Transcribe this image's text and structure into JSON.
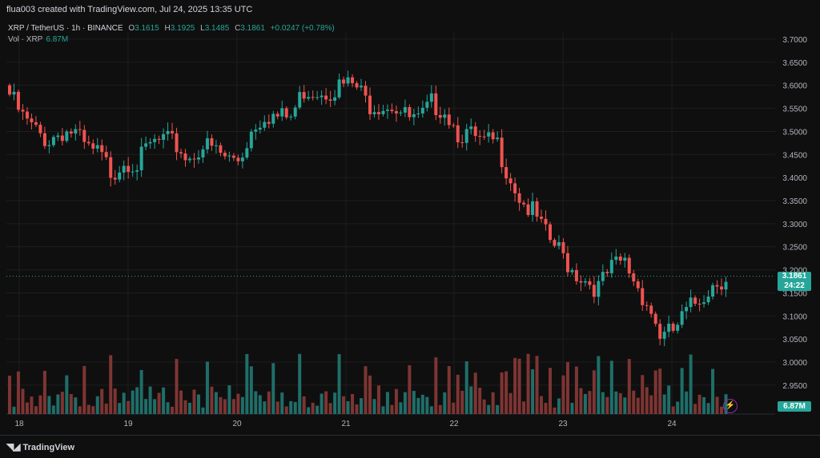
{
  "header": {
    "title": "flua003 created with TradingView.com, Jul 24, 2025 13:35 UTC"
  },
  "legend": {
    "symbol": "XRP / TetherUS · 1h · BINANCE",
    "open_label": "O",
    "open": "3.1615",
    "high_label": "H",
    "high": "3.1925",
    "low_label": "L",
    "low": "3.1485",
    "close_label": "C",
    "close": "3.1861",
    "change": "+0.0247 (+0.78%)",
    "vol_label": "Vol · XRP",
    "vol": "6.87M"
  },
  "price_labels": {
    "last": "3.1861",
    "countdown": "24:22",
    "volume": "6.87M"
  },
  "footer": {
    "logo": "TradingView"
  },
  "colors": {
    "up": "#26a69a",
    "down": "#ef5350",
    "up_vol": "#1f6e69",
    "down_vol": "#7e3533",
    "grid": "#1e1e1e"
  },
  "chart_data": {
    "type": "candlestick",
    "title": "XRP / TetherUS · 1h · BINANCE",
    "y_ticks": [
      "3.7000",
      "3.6500",
      "3.6000",
      "3.5500",
      "3.5000",
      "3.4500",
      "3.4000",
      "3.3500",
      "3.3000",
      "3.2500",
      "3.2000",
      "3.1500",
      "3.1000",
      "3.0500",
      "3.0000",
      "2.9500"
    ],
    "ylim": [
      2.93,
      3.72
    ],
    "x_ticks": [
      "18",
      "19",
      "20",
      "21",
      "22",
      "23",
      "24"
    ],
    "last_price": 3.1861,
    "close_series": [
      3.58,
      3.53,
      3.5,
      3.48,
      3.5,
      3.5,
      3.46,
      3.45,
      3.41,
      3.44,
      3.43,
      3.47,
      3.48,
      3.47,
      3.44,
      3.47,
      3.46,
      3.44,
      3.44,
      3.51,
      3.54,
      3.53,
      3.53,
      3.59,
      3.59,
      3.59,
      3.6,
      3.6,
      3.56,
      3.56,
      3.56,
      3.53,
      3.52,
      3.56,
      3.55,
      3.5,
      3.49,
      3.47,
      3.48,
      3.41,
      3.35,
      3.32,
      3.27,
      3.24,
      3.2,
      3.18,
      3.16,
      3.2,
      3.22,
      3.17,
      3.12,
      3.05,
      3.07,
      3.11,
      3.14,
      3.17,
      3.1861
    ]
  }
}
